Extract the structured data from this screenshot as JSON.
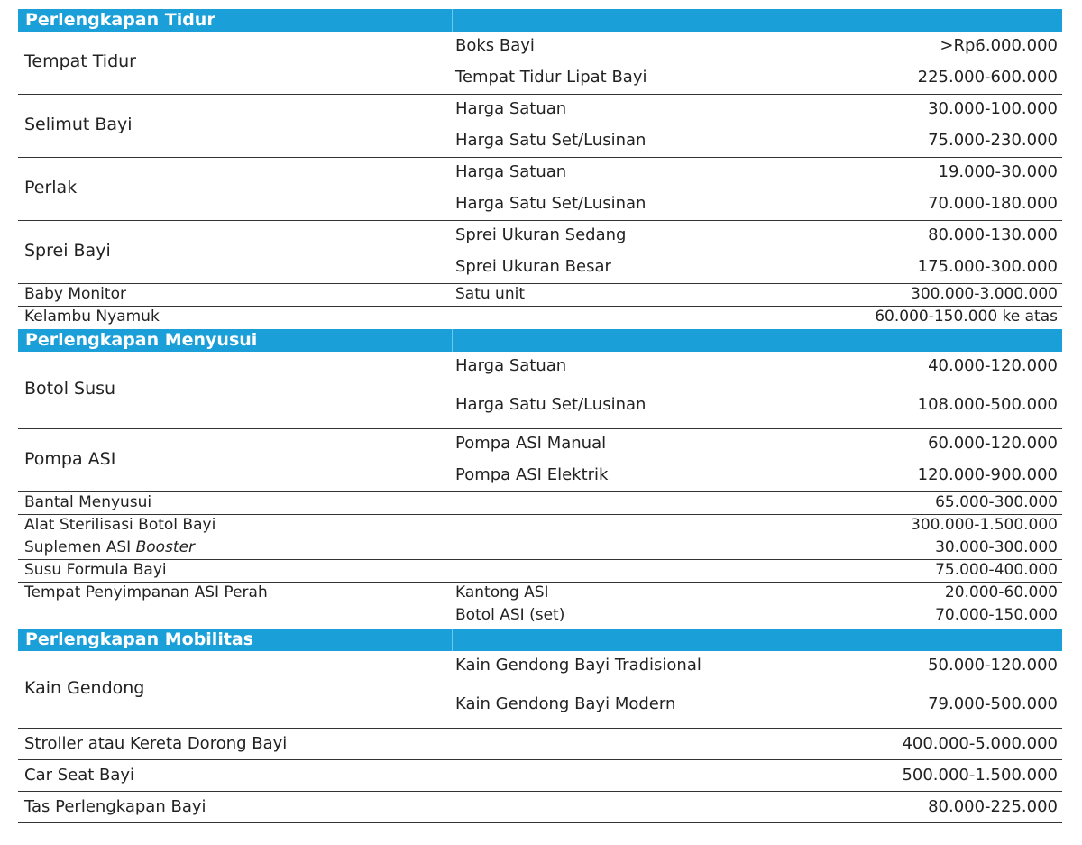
{
  "sections": [
    {
      "title": "Perlengkapan Tidur",
      "rows": [
        {
          "name": "Tempat Tidur",
          "items": [
            {
              "label": "Boks Bayi",
              "price": ">Rp6.000.000"
            },
            {
              "label": "Tempat Tidur Lipat Bayi",
              "price": "225.000-600.000"
            }
          ]
        },
        {
          "name": "Selimut Bayi",
          "items": [
            {
              "label": "Harga Satuan",
              "price": "30.000-100.000"
            },
            {
              "label": "Harga Satu Set/Lusinan",
              "price": "75.000-230.000"
            }
          ]
        },
        {
          "name": "Perlak",
          "items": [
            {
              "label": "Harga Satuan",
              "price": "19.000-30.000"
            },
            {
              "label": "Harga Satu Set/Lusinan",
              "price": "70.000-180.000"
            }
          ]
        },
        {
          "name": "Sprei Bayi",
          "items": [
            {
              "label": "Sprei Ukuran Sedang",
              "price": "80.000-130.000"
            },
            {
              "label": "Sprei Ukuran Besar",
              "price": "175.000-300.000"
            }
          ]
        },
        {
          "name": "Baby Monitor",
          "items": [
            {
              "label": "Satu unit",
              "price": "300.000-3.000.000"
            }
          ]
        },
        {
          "name": "Kelambu Nyamuk",
          "items": [
            {
              "label": "",
              "price": "60.000-150.000 ke atas"
            }
          ]
        }
      ]
    },
    {
      "title": "Perlengkapan Menyusui",
      "rows": [
        {
          "name": "Botol Susu",
          "items": [
            {
              "label": "Harga Satuan",
              "price": "40.000-120.000"
            },
            {
              "label": "Harga Satu Set/Lusinan",
              "price": "108.000-500.000"
            }
          ]
        },
        {
          "name": "Pompa ASI",
          "items": [
            {
              "label": "Pompa ASI Manual",
              "price": "60.000-120.000"
            },
            {
              "label": "Pompa ASI Elektrik",
              "price": "120.000-900.000"
            }
          ]
        },
        {
          "name": "Bantal Menyusui",
          "items": [
            {
              "label": "",
              "price": "65.000-300.000"
            }
          ]
        },
        {
          "name": "Alat Sterilisasi Botol Bayi",
          "items": [
            {
              "label": "",
              "price": "300.000-1.500.000"
            }
          ]
        },
        {
          "name": "Suplemen ASI",
          "name_italic": "Booster",
          "items": [
            {
              "label": "",
              "price": "30.000-300.000"
            }
          ]
        },
        {
          "name": "Susu Formula Bayi",
          "items": [
            {
              "label": "",
              "price": "75.000-400.000"
            }
          ]
        },
        {
          "name": "Tempat Penyimpanan ASI Perah",
          "items": [
            {
              "label": "Kantong ASI",
              "price": "20.000-60.000"
            },
            {
              "label": "Botol ASI (set)",
              "price": "70.000-150.000"
            }
          ]
        }
      ]
    },
    {
      "title": "Perlengkapan Mobilitas",
      "rows": [
        {
          "name": "Kain Gendong",
          "items": [
            {
              "label": "Kain Gendong Bayi Tradisional",
              "price": "50.000-120.000"
            },
            {
              "label": "Kain Gendong Bayi Modern",
              "price": "79.000-500.000"
            }
          ]
        },
        {
          "name": "Stroller atau Kereta Dorong Bayi",
          "items": [
            {
              "label": "",
              "price": "400.000-5.000.000"
            }
          ]
        },
        {
          "name": "Car Seat Bayi",
          "items": [
            {
              "label": "",
              "price": "500.000-1.500.000"
            }
          ]
        },
        {
          "name": "Tas Perlengkapan Bayi",
          "items": [
            {
              "label": "",
              "price": "80.000-225.000"
            }
          ]
        }
      ]
    }
  ]
}
